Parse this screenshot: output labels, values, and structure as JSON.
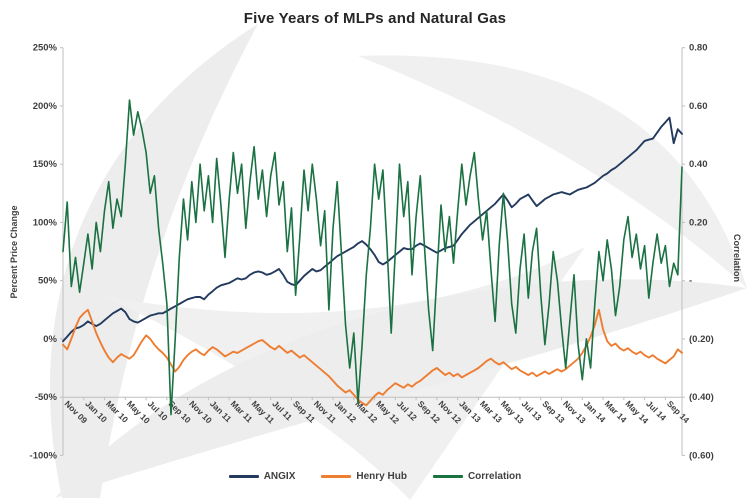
{
  "chart_data": {
    "type": "line",
    "title": "Five Years of MLPs and Natural Gas",
    "left_axis": {
      "label": "Percent Price Change",
      "ticks": [
        "250%",
        "200%",
        "150%",
        "100%",
        "50%",
        "0%",
        "-50%",
        "-100%"
      ],
      "min": -100,
      "max": 250,
      "unit": "percent"
    },
    "right_axis": {
      "label": "Correlation",
      "ticks": [
        "0.80",
        "0.60",
        "0.40",
        "0.20",
        "-",
        "(0.20)",
        "(0.40)",
        "(0.60)"
      ],
      "min": -0.6,
      "max": 0.8
    },
    "x_axis": {
      "tick_labels": [
        "Nov 09",
        "Jan 10",
        "Mar 10",
        "May 10",
        "Jul 10",
        "Sep 10",
        "Nov 10",
        "Jan 11",
        "Mar 11",
        "May 11",
        "Jul 11",
        "Sep 11",
        "Nov 11",
        "Jan 12",
        "Mar 12",
        "May 12",
        "Jul 12",
        "Sep 12",
        "Nov 12",
        "Jan 13",
        "Mar 13",
        "May 13",
        "Jul 13",
        "Sep 13",
        "Nov 13",
        "Jan 14",
        "Mar 14",
        "May 14",
        "Jul 14",
        "Sep 14"
      ],
      "tick_interval_months": 2,
      "start": "Nov 2009",
      "end": "Oct 2014"
    },
    "grid": "off",
    "legend_position": "bottom",
    "series": [
      {
        "name": "ANGIX",
        "axis": "left",
        "color": "#233a5f",
        "start_month": 0,
        "step_months": 0.4,
        "values": [
          -2,
          2,
          6,
          9,
          10,
          12,
          15,
          13,
          11,
          13,
          16,
          19,
          22,
          24,
          26,
          23,
          17,
          15,
          14,
          16,
          18,
          20,
          21,
          22,
          22,
          24,
          26,
          28,
          30,
          32,
          34,
          35,
          36,
          36,
          34,
          38,
          41,
          44,
          46,
          47,
          48,
          50,
          52,
          51,
          52,
          55,
          57,
          58,
          57,
          55,
          56,
          58,
          60,
          55,
          49,
          47,
          46,
          50,
          54,
          57,
          60,
          58,
          59,
          62,
          65,
          68,
          71,
          73,
          75,
          77,
          79,
          82,
          84,
          81,
          77,
          72,
          66,
          64,
          66,
          69,
          72,
          75,
          78,
          77,
          77,
          80,
          82,
          80,
          78,
          76,
          74,
          76,
          78,
          79,
          80,
          85,
          90,
          94,
          98,
          101,
          104,
          107,
          110,
          113,
          116,
          120,
          124,
          119,
          113,
          116,
          120,
          122,
          124,
          119,
          114,
          117,
          120,
          122,
          124,
          125,
          126,
          125,
          124,
          126,
          128,
          129,
          130,
          132,
          134,
          137,
          140,
          142,
          145,
          147,
          150,
          153,
          156,
          159,
          162,
          166,
          170,
          171,
          172,
          177,
          182,
          186,
          190,
          168,
          180,
          176
        ]
      },
      {
        "name": "Henry Hub",
        "axis": "left",
        "color": "#ed7d31",
        "start_month": 0,
        "step_months": 0.4,
        "values": [
          -5,
          -9,
          0,
          10,
          18,
          22,
          25,
          15,
          5,
          -3,
          -10,
          -16,
          -20,
          -16,
          -13,
          -15,
          -17,
          -14,
          -8,
          -2,
          3,
          0,
          -5,
          -9,
          -12,
          -16,
          -22,
          -28,
          -24,
          -18,
          -14,
          -11,
          -9,
          -12,
          -14,
          -10,
          -7,
          -9,
          -12,
          -15,
          -13,
          -11,
          -12,
          -10,
          -8,
          -6,
          -4,
          -2,
          -1,
          -4,
          -7,
          -9,
          -6,
          -9,
          -12,
          -10,
          -13,
          -16,
          -14,
          -17,
          -20,
          -23,
          -26,
          -29,
          -32,
          -36,
          -40,
          -43,
          -46,
          -44,
          -48,
          -52,
          -55,
          -57,
          -53,
          -49,
          -46,
          -48,
          -44,
          -41,
          -38,
          -40,
          -42,
          -39,
          -41,
          -38,
          -36,
          -33,
          -30,
          -27,
          -25,
          -28,
          -31,
          -29,
          -32,
          -30,
          -33,
          -31,
          -29,
          -27,
          -25,
          -22,
          -19,
          -17,
          -20,
          -22,
          -20,
          -23,
          -26,
          -24,
          -27,
          -29,
          -31,
          -29,
          -32,
          -30,
          -28,
          -30,
          -28,
          -26,
          -28,
          -26,
          -23,
          -20,
          -17,
          -12,
          -6,
          2,
          12,
          25,
          8,
          -2,
          -6,
          -4,
          -8,
          -10,
          -8,
          -11,
          -13,
          -11,
          -14,
          -16,
          -14,
          -17,
          -19,
          -21,
          -18,
          -15,
          -9,
          -12
        ]
      },
      {
        "name": "Correlation",
        "axis": "right",
        "color": "#1a7242",
        "start_month": 0,
        "step_months": 0.4,
        "values": [
          0.1,
          0.27,
          -0.02,
          0.08,
          -0.04,
          0.06,
          0.16,
          0.04,
          0.2,
          0.1,
          0.24,
          0.34,
          0.18,
          0.28,
          0.22,
          0.4,
          0.62,
          0.5,
          0.58,
          0.52,
          0.44,
          0.3,
          0.36,
          0.18,
          0.06,
          -0.08,
          -0.46,
          -0.2,
          0.08,
          0.28,
          0.14,
          0.34,
          0.2,
          0.4,
          0.24,
          0.36,
          0.2,
          0.42,
          0.26,
          0.08,
          0.28,
          0.44,
          0.3,
          0.4,
          0.18,
          0.34,
          0.46,
          0.28,
          0.38,
          0.22,
          0.36,
          0.44,
          0.26,
          0.34,
          0.1,
          0.25,
          -0.05,
          0.15,
          0.38,
          0.24,
          0.4,
          0.28,
          0.12,
          0.24,
          -0.1,
          0.18,
          0.34,
          0.1,
          -0.15,
          -0.3,
          -0.18,
          -0.42,
          -0.22,
          0.02,
          0.18,
          0.4,
          0.28,
          0.38,
          0.12,
          -0.18,
          0.1,
          0.4,
          0.22,
          0.34,
          0.02,
          0.22,
          0.36,
          0.12,
          -0.1,
          -0.24,
          0.02,
          0.26,
          0.1,
          0.22,
          0.06,
          0.24,
          0.4,
          0.26,
          0.36,
          0.44,
          0.28,
          0.14,
          0.24,
          0.04,
          -0.14,
          0.12,
          0.3,
          0.14,
          -0.08,
          -0.18,
          0.04,
          0.16,
          -0.06,
          0.1,
          0.18,
          -0.05,
          -0.22,
          -0.08,
          0.1,
          0.0,
          -0.16,
          -0.3,
          -0.14,
          0.02,
          -0.22,
          -0.34,
          -0.2,
          -0.3,
          -0.08,
          0.1,
          0.0,
          0.14,
          0.04,
          -0.12,
          -0.02,
          0.14,
          0.22,
          0.08,
          0.16,
          0.04,
          0.12,
          -0.06,
          0.06,
          0.16,
          0.06,
          0.12,
          -0.02,
          0.06,
          0.02,
          0.39
        ]
      }
    ]
  },
  "style": {
    "tick_text_color": "#3f3f3f",
    "axis_line_color": "#bfbfbf",
    "title_color": "#262626"
  }
}
